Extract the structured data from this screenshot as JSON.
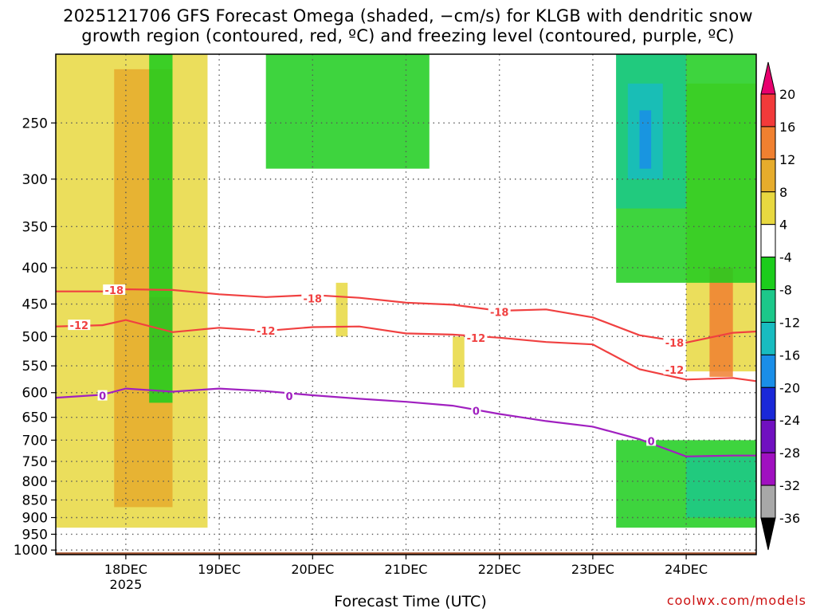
{
  "title_line1": "2025121706 GFS Forecast Omega (shaded, −cm/s) for KLGB with dendritic snow",
  "title_line2": "growth region (contoured, red, ºC) and freezing level (contoured, purple, ºC)",
  "xlabel": "Forecast Time (UTC)",
  "credit": "coolwx.com/models",
  "chart_data": {
    "type": "heatmap",
    "title": "2025121706 GFS Forecast Omega (shaded, −cm/s) for KLGB with dendritic snow growth region (contoured, red, ºC) and freezing level (contoured, purple, ºC)",
    "xlabel": "Forecast Time (UTC)",
    "ylabel": "",
    "y_scale": "log",
    "y_reversed": true,
    "ylim": [
      1015,
      200
    ],
    "xlim": [
      "2025-12-17 06:00",
      "2025-12-24 18:00"
    ],
    "x_ticks": [
      {
        "label": "18DEC",
        "time": "2025-12-18 00:00"
      },
      {
        "label": "19DEC",
        "time": "2025-12-19 00:00"
      },
      {
        "label": "20DEC",
        "time": "2025-12-20 00:00"
      },
      {
        "label": "21DEC",
        "time": "2025-12-21 00:00"
      },
      {
        "label": "22DEC",
        "time": "2025-12-22 00:00"
      },
      {
        "label": "23DEC",
        "time": "2025-12-23 00:00"
      },
      {
        "label": "24DEC",
        "time": "2025-12-24 00:00"
      }
    ],
    "x_year_label": "2025",
    "y_ticks": [
      250,
      300,
      350,
      400,
      450,
      500,
      550,
      600,
      650,
      700,
      750,
      800,
      850,
      900,
      950,
      1000
    ],
    "grid": "dotted",
    "colorbar": {
      "labels": [
        "20",
        "16",
        "12",
        "8",
        "4",
        "-4",
        "-8",
        "-12",
        "-16",
        "-20",
        "-24",
        "-28",
        "-32",
        "-36"
      ],
      "colors": [
        "#e8006e",
        "#f23a3a",
        "#f08030",
        "#e6ac2c",
        "#e8d840",
        "#ffffff",
        "#1ccd1c",
        "#1cc88a",
        "#18bcc0",
        "#1a8ee8",
        "#1a28d8",
        "#7010c0",
        "#a010c0",
        "#a8a8a8",
        "#000000"
      ]
    },
    "contours": [
      {
        "label": "-18",
        "color": "#f04040",
        "points": [
          {
            "t": "2025-12-17 06:00",
            "p": 432
          },
          {
            "t": "2025-12-17 18:00",
            "p": 432
          },
          {
            "t": "2025-12-18 00:00",
            "p": 429
          },
          {
            "t": "2025-12-18 12:00",
            "p": 430
          },
          {
            "t": "2025-12-19 00:00",
            "p": 436
          },
          {
            "t": "2025-12-19 12:00",
            "p": 440
          },
          {
            "t": "2025-12-20 00:00",
            "p": 437
          },
          {
            "t": "2025-12-20 12:00",
            "p": 441
          },
          {
            "t": "2025-12-21 00:00",
            "p": 448
          },
          {
            "t": "2025-12-21 12:00",
            "p": 451
          },
          {
            "t": "2025-12-22 00:00",
            "p": 460
          },
          {
            "t": "2025-12-22 12:00",
            "p": 458
          },
          {
            "t": "2025-12-23 00:00",
            "p": 470
          },
          {
            "t": "2025-12-23 12:00",
            "p": 498
          },
          {
            "t": "2025-12-24 00:00",
            "p": 510
          },
          {
            "t": "2025-12-24 12:00",
            "p": 494
          },
          {
            "t": "2025-12-24 18:00",
            "p": 492
          }
        ]
      },
      {
        "label": "-12",
        "color": "#f04040",
        "points": [
          {
            "t": "2025-12-17 06:00",
            "p": 484
          },
          {
            "t": "2025-12-17 18:00",
            "p": 482
          },
          {
            "t": "2025-12-18 00:00",
            "p": 474
          },
          {
            "t": "2025-12-18 12:00",
            "p": 493
          },
          {
            "t": "2025-12-19 00:00",
            "p": 486
          },
          {
            "t": "2025-12-19 12:00",
            "p": 491
          },
          {
            "t": "2025-12-20 00:00",
            "p": 485
          },
          {
            "t": "2025-12-20 12:00",
            "p": 484
          },
          {
            "t": "2025-12-21 00:00",
            "p": 495
          },
          {
            "t": "2025-12-21 12:00",
            "p": 497
          },
          {
            "t": "2025-12-22 00:00",
            "p": 502
          },
          {
            "t": "2025-12-22 12:00",
            "p": 509
          },
          {
            "t": "2025-12-23 00:00",
            "p": 513
          },
          {
            "t": "2025-12-23 12:00",
            "p": 556
          },
          {
            "t": "2025-12-24 00:00",
            "p": 575
          },
          {
            "t": "2025-12-24 12:00",
            "p": 572
          },
          {
            "t": "2025-12-24 18:00",
            "p": 578
          }
        ]
      },
      {
        "label": "0",
        "color": "#a020c0",
        "points": [
          {
            "t": "2025-12-17 06:00",
            "p": 610
          },
          {
            "t": "2025-12-17 18:00",
            "p": 604
          },
          {
            "t": "2025-12-18 00:00",
            "p": 592
          },
          {
            "t": "2025-12-18 12:00",
            "p": 598
          },
          {
            "t": "2025-12-19 00:00",
            "p": 592
          },
          {
            "t": "2025-12-19 12:00",
            "p": 597
          },
          {
            "t": "2025-12-20 00:00",
            "p": 605
          },
          {
            "t": "2025-12-20 12:00",
            "p": 612
          },
          {
            "t": "2025-12-21 00:00",
            "p": 618
          },
          {
            "t": "2025-12-21 12:00",
            "p": 626
          },
          {
            "t": "2025-12-22 00:00",
            "p": 643
          },
          {
            "t": "2025-12-22 12:00",
            "p": 658
          },
          {
            "t": "2025-12-23 00:00",
            "p": 670
          },
          {
            "t": "2025-12-23 12:00",
            "p": 698
          },
          {
            "t": "2025-12-24 00:00",
            "p": 738
          },
          {
            "t": "2025-12-24 12:00",
            "p": 736
          },
          {
            "t": "2025-12-24 18:00",
            "p": 736
          }
        ]
      }
    ],
    "contour_labels": [
      {
        "text": "-18",
        "t": "2025-12-17 21:00",
        "p": 430
      },
      {
        "text": "-18",
        "t": "2025-12-20 00:00",
        "p": 442
      },
      {
        "text": "-18",
        "t": "2025-12-22 00:00",
        "p": 462
      },
      {
        "text": "-18",
        "t": "2025-12-23 21:00",
        "p": 510
      },
      {
        "text": "-12",
        "t": "2025-12-17 12:00",
        "p": 482
      },
      {
        "text": "-12",
        "t": "2025-12-19 12:00",
        "p": 491
      },
      {
        "text": "-12",
        "t": "2025-12-21 18:00",
        "p": 502
      },
      {
        "text": "-12",
        "t": "2025-12-23 21:00",
        "p": 557
      },
      {
        "text": "0",
        "t": "2025-12-17 18:00",
        "p": 606
      },
      {
        "text": "0",
        "t": "2025-12-19 18:00",
        "p": 607
      },
      {
        "text": "0",
        "t": "2025-12-21 18:00",
        "p": 636
      },
      {
        "text": "0",
        "t": "2025-12-23 15:00",
        "p": 702
      }
    ],
    "shaded_regions": [
      {
        "level": "4",
        "color": "#e8d840",
        "t0": "2025-12-17 06:00",
        "t1": "2025-12-18 21:00",
        "p0": 200,
        "p1": 930
      },
      {
        "level": "4",
        "color": "#e8d840",
        "t0": "2025-12-24 00:00",
        "t1": "2025-12-24 18:00",
        "p0": 220,
        "p1": 560
      },
      {
        "level": "4",
        "color": "#e8d840",
        "t0": "2025-12-20 06:00",
        "t1": "2025-12-20 09:00",
        "p0": 420,
        "p1": 500
      },
      {
        "level": "4",
        "color": "#e8d840",
        "t0": "2025-12-21 12:00",
        "t1": "2025-12-21 15:00",
        "p0": 500,
        "p1": 590
      },
      {
        "level": "8",
        "color": "#e6ac2c",
        "t0": "2025-12-17 21:00",
        "t1": "2025-12-18 12:00",
        "p0": 210,
        "p1": 870
      },
      {
        "level": "12",
        "color": "#f08030",
        "t0": "2025-12-18 06:00",
        "t1": "2025-12-18 12:00",
        "p0": 440,
        "p1": 540
      },
      {
        "level": "12",
        "color": "#f08030",
        "t0": "2025-12-24 06:00",
        "t1": "2025-12-24 12:00",
        "p0": 400,
        "p1": 570
      },
      {
        "level": "-8",
        "color": "#1ccd1c",
        "t0": "2025-12-23 06:00",
        "t1": "2025-12-24 18:00",
        "p0": 200,
        "p1": 420
      },
      {
        "level": "-8",
        "color": "#1ccd1c",
        "t0": "2025-12-23 06:00",
        "t1": "2025-12-24 18:00",
        "p0": 700,
        "p1": 930
      },
      {
        "level": "-8",
        "color": "#1ccd1c",
        "t0": "2025-12-18 06:00",
        "t1": "2025-12-18 12:00",
        "p0": 200,
        "p1": 620
      },
      {
        "level": "-8",
        "color": "#1ccd1c",
        "t0": "2025-12-19 12:00",
        "t1": "2025-12-21 06:00",
        "p0": 200,
        "p1": 290
      },
      {
        "level": "-12",
        "color": "#1cc88a",
        "t0": "2025-12-23 06:00",
        "t1": "2025-12-24 00:00",
        "p0": 200,
        "p1": 330
      },
      {
        "level": "-12",
        "color": "#1cc88a",
        "t0": "2025-12-24 00:00",
        "t1": "2025-12-24 18:00",
        "p0": 740,
        "p1": 900
      },
      {
        "level": "-16",
        "color": "#18bcc0",
        "t0": "2025-12-23 09:00",
        "t1": "2025-12-23 18:00",
        "p0": 220,
        "p1": 300
      },
      {
        "level": "-20",
        "color": "#1a8ee8",
        "t0": "2025-12-23 12:00",
        "t1": "2025-12-23 15:00",
        "p0": 240,
        "p1": 290
      }
    ],
    "ground_color": "#a0522d"
  }
}
